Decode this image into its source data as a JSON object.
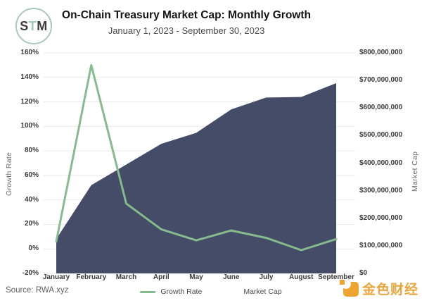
{
  "logo": {
    "s": "S",
    "t": "T",
    "m": "M"
  },
  "header": {
    "title": "On-Chain Treasury Market Cap: Monthly Growth",
    "subtitle": "January 1, 2023 - September 30, 2023"
  },
  "chart_data": {
    "type": "combo-line-area-dual-axis",
    "categories": [
      "January",
      "February",
      "March",
      "April",
      "May",
      "June",
      "July",
      "August",
      "September"
    ],
    "series": [
      {
        "name": "Growth Rate",
        "type": "line",
        "axis": "left",
        "unit": "%",
        "color": "#85bb8d",
        "values": [
          6,
          150,
          37,
          16,
          7,
          15,
          9,
          -1,
          8
        ]
      },
      {
        "name": "Market Cap",
        "type": "area",
        "axis": "right",
        "unit": "USD",
        "color": "#454c67",
        "values": [
          125000000,
          320000000,
          395000000,
          470000000,
          510000000,
          595000000,
          638000000,
          640000000,
          690000000
        ]
      }
    ],
    "left_axis": {
      "label": "Growth Rate",
      "min": -20,
      "max": 160,
      "ticks": [
        "160%",
        "140%",
        "120%",
        "100%",
        "80%",
        "60%",
        "40%",
        "20%",
        "0%",
        "-20%"
      ]
    },
    "right_axis": {
      "label": "Market Cap",
      "min": 0,
      "max": 800000000,
      "ticks": [
        "$800,000,000",
        "$700,000,000",
        "$600,000,000",
        "$500,000,000",
        "$400,000,000",
        "$300,000,000",
        "$200,000,000",
        "$100,000,000",
        "$0"
      ]
    },
    "grid": true,
    "gridline_color": "#e9e9e9",
    "legend_position": "bottom"
  },
  "legend": {
    "growth_label": "Growth Rate",
    "marketcap_label": "Market Cap"
  },
  "footer": {
    "source": "Source: RWA.xyz"
  },
  "watermark": {
    "text": "金色财经",
    "color": "#e9a63c"
  }
}
